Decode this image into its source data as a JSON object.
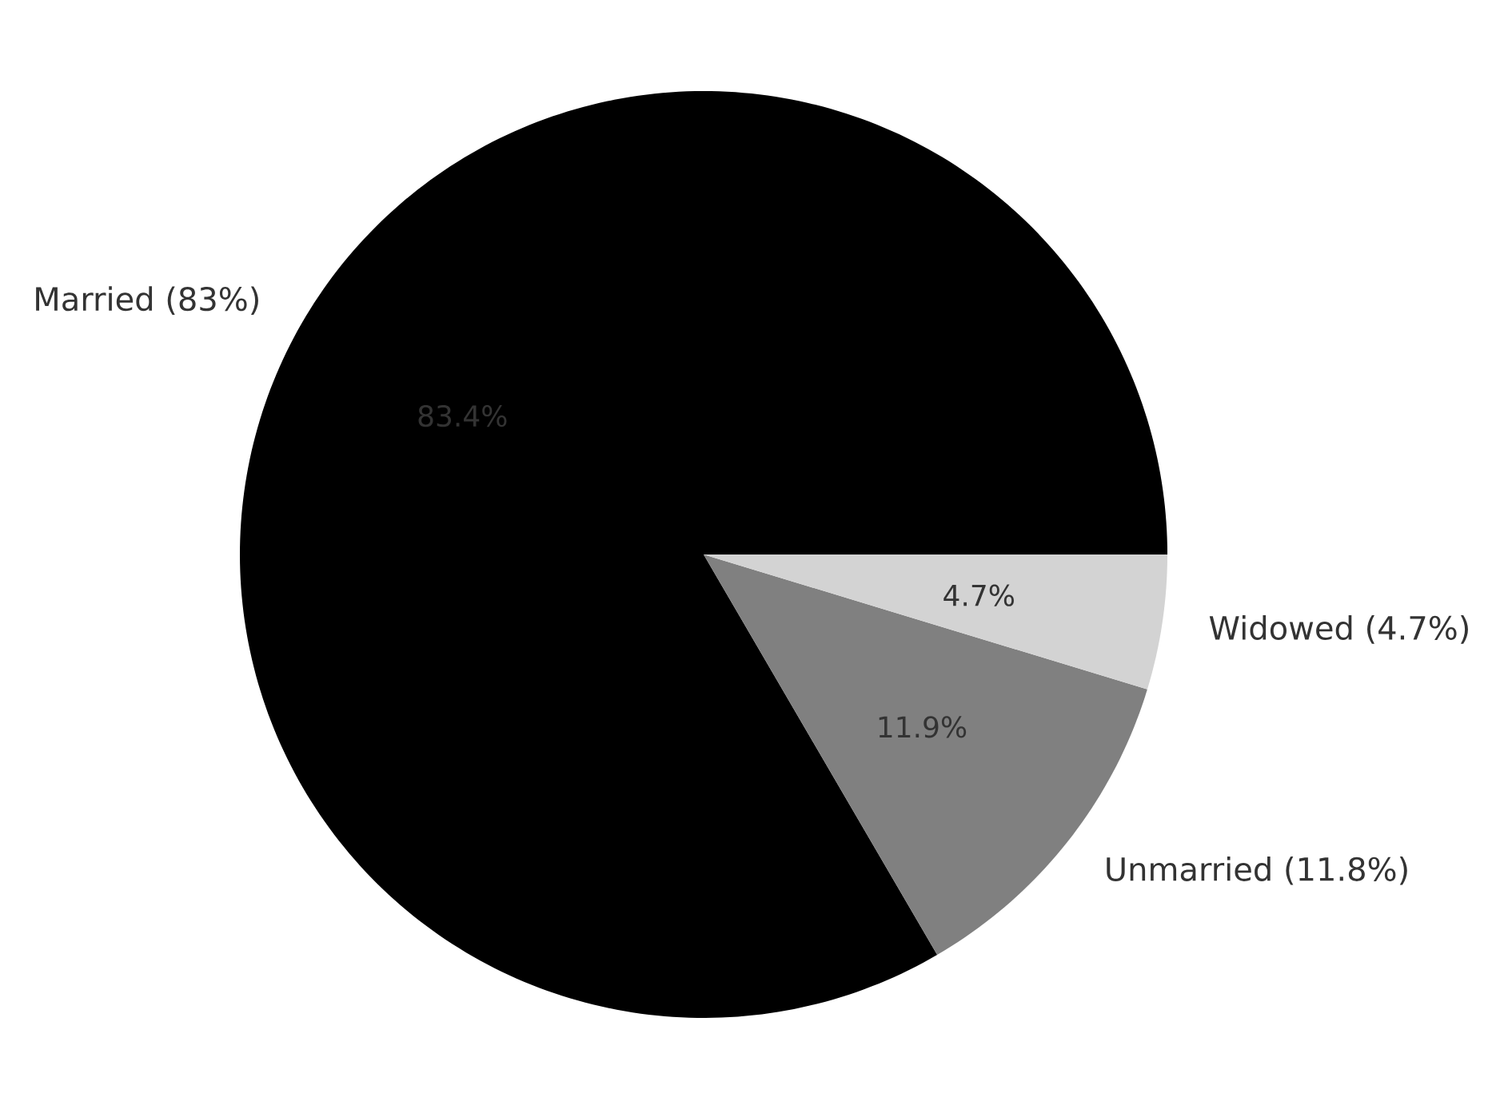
{
  "chart_data": {
    "type": "pie",
    "categories": [
      "Married (83%)",
      "Unmarried (11.8%)",
      "Widowed (4.7%)"
    ],
    "values": [
      83.4,
      11.9,
      4.7
    ],
    "value_labels": [
      "83.4%",
      "11.9%",
      "4.7%"
    ],
    "colors": [
      "#000000",
      "#808080",
      "#d3d3d3"
    ]
  }
}
